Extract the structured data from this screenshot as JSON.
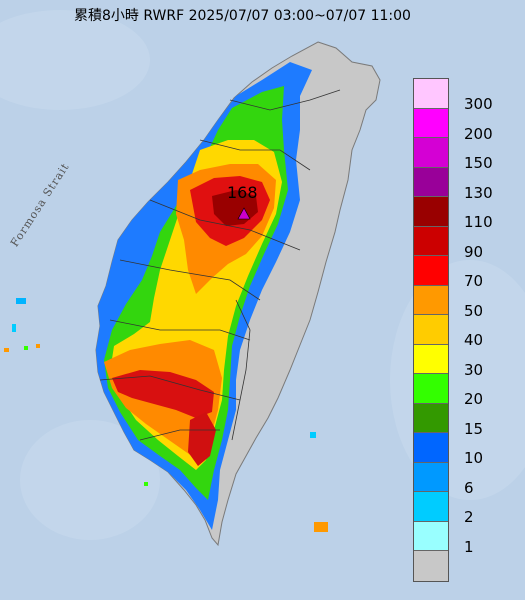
{
  "title": "累積8小時 RWRF 2025/07/07 03:00~07/07 11:00",
  "sea_label": "Formosa Strait",
  "max_value_label": "168",
  "colors": {
    "sea": "#b9cfe6",
    "land_low": "#c8c8c8"
  },
  "legend": [
    {
      "label": "300",
      "color": "#ffc6ff"
    },
    {
      "label": "200",
      "color": "#ff00ff"
    },
    {
      "label": "150",
      "color": "#d400d4"
    },
    {
      "label": "130",
      "color": "#990099"
    },
    {
      "label": "110",
      "color": "#990000"
    },
    {
      "label": "90",
      "color": "#cc0000"
    },
    {
      "label": "70",
      "color": "#ff0000"
    },
    {
      "label": "50",
      "color": "#ff9900"
    },
    {
      "label": "40",
      "color": "#ffcc00"
    },
    {
      "label": "30",
      "color": "#ffff00"
    },
    {
      "label": "20",
      "color": "#33ff00"
    },
    {
      "label": "15",
      "color": "#339900"
    },
    {
      "label": "10",
      "color": "#0066ff"
    },
    {
      "label": "6",
      "color": "#0099ff"
    },
    {
      "label": "2",
      "color": "#00ccff"
    },
    {
      "label": "1",
      "color": "#99ffff"
    },
    {
      "label": "",
      "color": "#c8c8c8"
    }
  ]
}
